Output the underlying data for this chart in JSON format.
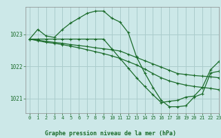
{
  "title": "Graphe pression niveau de la mer (hPa)",
  "background_color": "#cce8e8",
  "grid_color": "#aacccc",
  "line_color": "#1a6b2a",
  "marker_color": "#1a6b2a",
  "xlim": [
    -0.5,
    23
  ],
  "ylim": [
    1020.55,
    1023.85
  ],
  "yticks": [
    1021,
    1022,
    1023
  ],
  "xticks": [
    0,
    1,
    2,
    3,
    4,
    5,
    6,
    7,
    8,
    9,
    10,
    11,
    12,
    13,
    14,
    15,
    16,
    17,
    18,
    19,
    20,
    21,
    22,
    23
  ],
  "series": [
    {
      "x": [
        0,
        1,
        2,
        3,
        4,
        5,
        6,
        7,
        8,
        9,
        10,
        11,
        12,
        13,
        14,
        15,
        16,
        17,
        18,
        19,
        20,
        21,
        22,
        23
      ],
      "y": [
        1022.85,
        1023.15,
        1022.95,
        1022.9,
        1023.15,
        1023.35,
        1023.5,
        1023.65,
        1023.72,
        1023.72,
        1023.5,
        1023.38,
        1023.05,
        1022.3,
        1021.8,
        1021.35,
        1020.95,
        1020.75,
        1020.75,
        1020.78,
        1021.05,
        1021.15,
        1021.8,
        1021.85
      ]
    },
    {
      "x": [
        0,
        1,
        2,
        3,
        4,
        5,
        6,
        7,
        8,
        9,
        10,
        11,
        12,
        13,
        14,
        15,
        16,
        17,
        18,
        19,
        20,
        21,
        22,
        23
      ],
      "y": [
        1022.85,
        1022.85,
        1022.85,
        1022.85,
        1022.85,
        1022.85,
        1022.85,
        1022.85,
        1022.85,
        1022.85,
        1022.55,
        1022.25,
        1021.95,
        1021.65,
        1021.38,
        1021.12,
        1020.88,
        1020.92,
        1020.95,
        1021.05,
        1021.08,
        1021.35,
        1021.9,
        1022.15
      ]
    },
    {
      "x": [
        0,
        1,
        2,
        3,
        4,
        5,
        6,
        7,
        8,
        9,
        10,
        11,
        12,
        13,
        14,
        15,
        16,
        17,
        18,
        19,
        20,
        21,
        22,
        23
      ],
      "y": [
        1022.85,
        1022.82,
        1022.78,
        1022.75,
        1022.72,
        1022.68,
        1022.65,
        1022.62,
        1022.58,
        1022.55,
        1022.52,
        1022.48,
        1022.38,
        1022.28,
        1022.18,
        1022.08,
        1021.98,
        1021.88,
        1021.78,
        1021.75,
        1021.72,
        1021.7,
        1021.68,
        1021.65
      ]
    },
    {
      "x": [
        0,
        1,
        2,
        3,
        4,
        5,
        6,
        7,
        8,
        9,
        10,
        11,
        12,
        13,
        14,
        15,
        16,
        17,
        18,
        19,
        20,
        21,
        22,
        23
      ],
      "y": [
        1022.85,
        1022.8,
        1022.75,
        1022.72,
        1022.68,
        1022.63,
        1022.58,
        1022.52,
        1022.46,
        1022.4,
        1022.33,
        1022.25,
        1022.15,
        1022.05,
        1021.92,
        1021.78,
        1021.65,
        1021.55,
        1021.48,
        1021.42,
        1021.38,
        1021.35,
        1021.32,
        1021.28
      ]
    }
  ]
}
